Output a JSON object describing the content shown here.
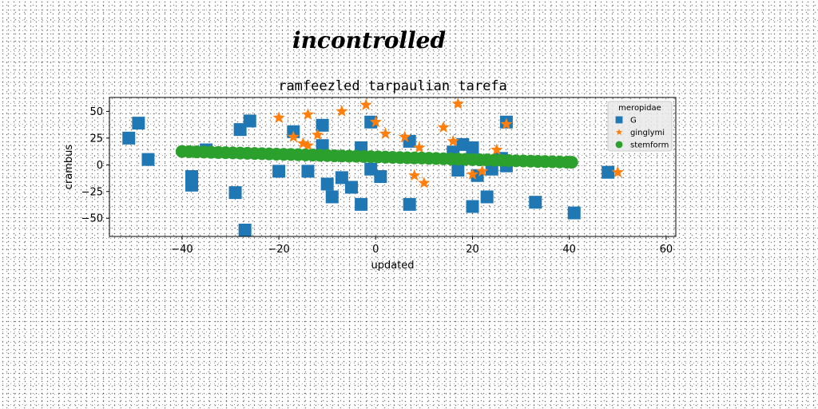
{
  "figure": {
    "suptitle": "incontrolled"
  },
  "chart_data": {
    "type": "scatter",
    "title": "ramfeezled tarpaulian tarefa",
    "xlabel": "updated",
    "ylabel": "crambus",
    "xlim": [
      -55,
      62
    ],
    "ylim": [
      -67,
      63
    ],
    "xticks": [
      -40,
      -20,
      0,
      20,
      40,
      60
    ],
    "yticks": [
      -50,
      -25,
      0,
      25,
      50
    ],
    "grid": false,
    "legend": {
      "title": "meropidae",
      "placement": "top-right"
    },
    "series": [
      {
        "name": "G",
        "marker": "square",
        "color": "#1f77b4",
        "points": [
          [
            -51,
            25
          ],
          [
            -49,
            39
          ],
          [
            -47,
            5
          ],
          [
            -38,
            -11
          ],
          [
            -38,
            -19
          ],
          [
            -35,
            14
          ],
          [
            -29,
            -26
          ],
          [
            -28,
            33
          ],
          [
            -26,
            41
          ],
          [
            -27,
            -61
          ],
          [
            -20,
            -6
          ],
          [
            -17,
            31
          ],
          [
            -14,
            -6
          ],
          [
            -11,
            37
          ],
          [
            -11,
            18
          ],
          [
            -10,
            -18
          ],
          [
            -9,
            -30
          ],
          [
            -7,
            -12
          ],
          [
            -5,
            -21
          ],
          [
            -3,
            16
          ],
          [
            -3,
            -37
          ],
          [
            -1,
            40
          ],
          [
            -1,
            -4
          ],
          [
            1,
            -11
          ],
          [
            7,
            22
          ],
          [
            7,
            -37
          ],
          [
            16,
            12
          ],
          [
            17,
            -5
          ],
          [
            18,
            19
          ],
          [
            20,
            16
          ],
          [
            20,
            -39
          ],
          [
            21,
            -10
          ],
          [
            23,
            -30
          ],
          [
            24,
            -4
          ],
          [
            26,
            6
          ],
          [
            27,
            -1
          ],
          [
            27,
            40
          ],
          [
            33,
            -35
          ],
          [
            41,
            -45
          ],
          [
            48,
            -7
          ]
        ]
      },
      {
        "name": "ginglymi",
        "marker": "star",
        "color": "#ff7f0e",
        "points": [
          [
            -20,
            44
          ],
          [
            -17,
            26
          ],
          [
            -15,
            20
          ],
          [
            -14,
            18
          ],
          [
            -14,
            47
          ],
          [
            -12,
            28
          ],
          [
            -7,
            50
          ],
          [
            -2,
            56
          ],
          [
            0,
            40
          ],
          [
            2,
            29
          ],
          [
            6,
            26
          ],
          [
            8,
            -10
          ],
          [
            9,
            16
          ],
          [
            10,
            -17
          ],
          [
            14,
            35
          ],
          [
            16,
            22
          ],
          [
            17,
            57
          ],
          [
            20,
            -9
          ],
          [
            22,
            -6
          ],
          [
            25,
            14
          ],
          [
            27,
            38
          ],
          [
            50,
            -7
          ]
        ]
      },
      {
        "name": "stemform",
        "marker": "circle",
        "color": "#2ca02c",
        "points": [
          [
            -40.0,
            12.5
          ],
          [
            -38.5,
            12.3
          ],
          [
            -37.0,
            12.1
          ],
          [
            -35.5,
            11.9
          ],
          [
            -34.0,
            11.7
          ],
          [
            -32.5,
            11.5
          ],
          [
            -31.0,
            11.4
          ],
          [
            -29.5,
            11.2
          ],
          [
            -28.0,
            11.0
          ],
          [
            -26.5,
            10.8
          ],
          [
            -25.0,
            10.6
          ],
          [
            -23.5,
            10.4
          ],
          [
            -22.0,
            10.2
          ],
          [
            -20.5,
            10.0
          ],
          [
            -19.0,
            9.8
          ],
          [
            -17.5,
            9.7
          ],
          [
            -16.0,
            9.5
          ],
          [
            -14.5,
            9.3
          ],
          [
            -13.0,
            9.1
          ],
          [
            -11.5,
            8.9
          ],
          [
            -10.0,
            8.7
          ],
          [
            -8.5,
            8.5
          ],
          [
            -7.0,
            8.3
          ],
          [
            -5.5,
            8.1
          ],
          [
            -4.0,
            8.0
          ],
          [
            -2.5,
            7.8
          ],
          [
            -1.0,
            7.6
          ],
          [
            0.5,
            7.4
          ],
          [
            2.0,
            7.2
          ],
          [
            3.5,
            7.0
          ],
          [
            5.0,
            6.8
          ],
          [
            6.5,
            6.6
          ],
          [
            8.0,
            6.4
          ],
          [
            9.5,
            6.3
          ],
          [
            11.0,
            6.1
          ],
          [
            12.5,
            5.9
          ],
          [
            14.0,
            5.7
          ],
          [
            15.5,
            5.5
          ],
          [
            17.0,
            5.3
          ],
          [
            18.5,
            5.1
          ],
          [
            20.0,
            4.9
          ],
          [
            21.5,
            4.7
          ],
          [
            23.0,
            4.6
          ],
          [
            24.5,
            4.4
          ],
          [
            26.0,
            4.2
          ],
          [
            27.5,
            4.0
          ],
          [
            29.0,
            3.8
          ],
          [
            30.5,
            3.6
          ],
          [
            32.0,
            3.4
          ],
          [
            33.5,
            3.2
          ],
          [
            35.0,
            3.0
          ],
          [
            36.5,
            2.9
          ],
          [
            38.0,
            2.7
          ],
          [
            39.5,
            2.5
          ],
          [
            40.5,
            2.4
          ]
        ]
      }
    ]
  }
}
